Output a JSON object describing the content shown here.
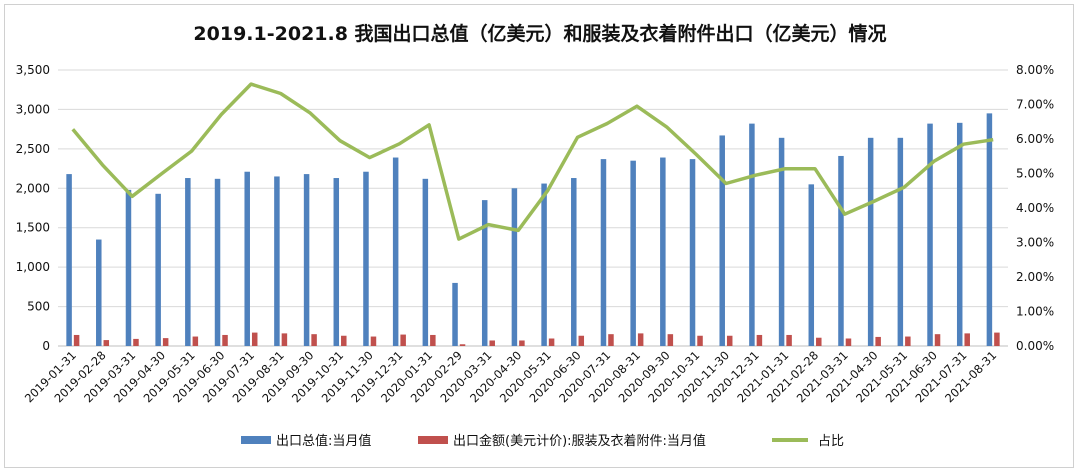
{
  "chart_data": {
    "type": "bar",
    "title": "2019.1-2021.8 我国出口总值（亿美元）和服装及衣着附件出口（亿美元）情况",
    "categories": [
      "2019-01-31",
      "2019-02-28",
      "2019-03-31",
      "2019-04-30",
      "2019-05-31",
      "2019-06-30",
      "2019-07-31",
      "2019-08-31",
      "2019-09-30",
      "2019-10-31",
      "2019-11-30",
      "2019-12-31",
      "2020-01-31",
      "2020-02-29",
      "2020-03-31",
      "2020-04-30",
      "2020-05-31",
      "2020-06-30",
      "2020-07-31",
      "2020-08-31",
      "2020-09-30",
      "2020-10-31",
      "2020-11-30",
      "2020-12-31",
      "2021-01-31",
      "2021-02-28",
      "2021-03-31",
      "2021-04-30",
      "2021-05-31",
      "2021-06-30",
      "2021-07-31",
      "2021-08-31"
    ],
    "series": [
      {
        "name": "出口总值:当月值",
        "axis": "left",
        "kind": "bar",
        "color": "#4f81bd",
        "values": [
          2180,
          1350,
          1980,
          1930,
          2130,
          2120,
          2210,
          2150,
          2180,
          2130,
          2210,
          2390,
          2120,
          800,
          1850,
          2000,
          2060,
          2130,
          2370,
          2350,
          2390,
          2370,
          2670,
          2820,
          2640,
          2050,
          2410,
          2640,
          2640,
          2820,
          2830,
          2950
        ]
      },
      {
        "name": "出口金额(美元计价):服装及衣着附件:当月值",
        "axis": "left",
        "kind": "bar",
        "color": "#c0504d",
        "values": [
          140,
          75,
          90,
          100,
          120,
          140,
          170,
          160,
          150,
          130,
          120,
          145,
          140,
          22,
          70,
          70,
          95,
          130,
          150,
          160,
          150,
          130,
          130,
          140,
          140,
          105,
          95,
          115,
          120,
          150,
          160,
          170
        ]
      },
      {
        "name": "占比",
        "axis": "right",
        "kind": "line",
        "color": "#9bbb59",
        "values": [
          6.28,
          5.25,
          4.34,
          5.0,
          5.65,
          6.71,
          7.59,
          7.32,
          6.75,
          5.95,
          5.46,
          5.86,
          6.41,
          3.1,
          3.52,
          3.35,
          4.51,
          6.05,
          6.45,
          6.95,
          6.35,
          5.55,
          4.71,
          4.95,
          5.14,
          5.14,
          3.82,
          4.2,
          4.6,
          5.35,
          5.85,
          5.98
        ]
      }
    ],
    "y_left": {
      "ylim": [
        0,
        3500
      ],
      "ticks": [
        "0",
        "500",
        "1,000",
        "1,500",
        "2,000",
        "2,500",
        "3,000",
        "3,500"
      ]
    },
    "y_right": {
      "ylim": [
        0,
        8
      ],
      "ticks": [
        "0.00%",
        "1.00%",
        "2.00%",
        "3.00%",
        "4.00%",
        "5.00%",
        "6.00%",
        "7.00%",
        "8.00%"
      ]
    },
    "grid": true,
    "legend_placement": "bottom"
  }
}
